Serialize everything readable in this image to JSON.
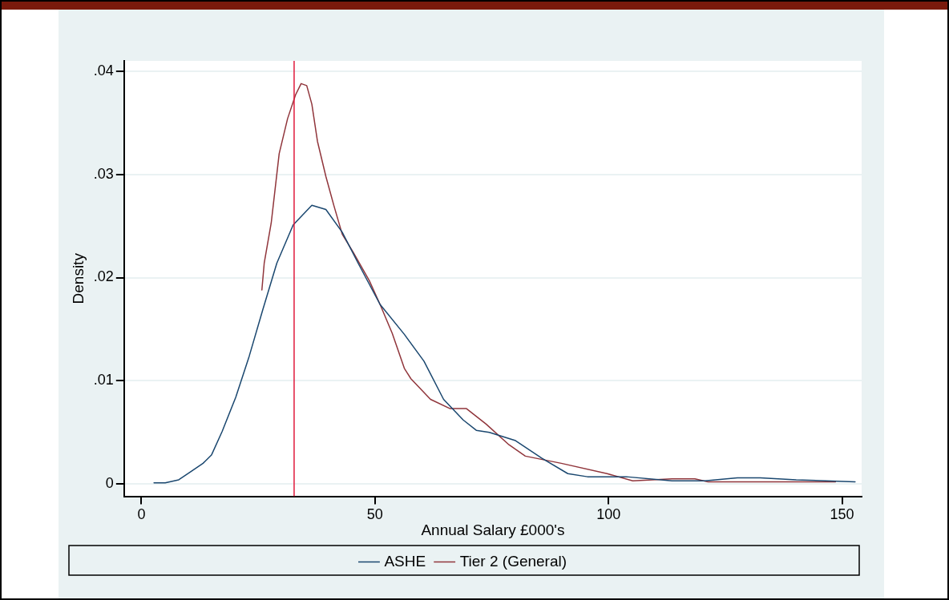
{
  "chart_data": {
    "type": "line",
    "xlabel": "Annual Salary £000's",
    "ylabel": "Density",
    "xlim": [
      -3.7,
      154.2
    ],
    "ylim": [
      -0.0012,
      0.041
    ],
    "xticks": [
      0,
      50,
      100,
      150
    ],
    "yticks": [
      {
        "value": 0,
        "label": "0"
      },
      {
        "value": 0.01,
        "label": ".01"
      },
      {
        "value": 0.02,
        "label": ".02"
      },
      {
        "value": 0.03,
        "label": ".03"
      },
      {
        "value": 0.04,
        "label": ".04"
      }
    ],
    "grid": "y",
    "legend": "bottom",
    "marker": "none",
    "line_style": "solid",
    "ref_lines": [
      {
        "axis": "x",
        "value": 32.7,
        "color": "#e0193c"
      }
    ],
    "series": [
      {
        "name": "ASHE",
        "color": "#1a476f",
        "x": [
          2.7,
          5.1,
          8.0,
          10.3,
          13.2,
          15.0,
          17.3,
          20.2,
          23.1,
          26.0,
          29.0,
          32.5,
          36.5,
          39.5,
          43.0,
          46.4,
          51.1,
          56.3,
          60.5,
          64.7,
          68.9,
          71.7,
          74.5,
          80.1,
          85.7,
          91.3,
          95.5,
          103.8,
          113.6,
          120.6,
          127.6,
          132.5,
          140.2,
          152.8
        ],
        "values": [
          0.0001,
          0.0001,
          0.0004,
          0.0011,
          0.002,
          0.0028,
          0.0051,
          0.0084,
          0.0124,
          0.0169,
          0.0214,
          0.0251,
          0.027,
          0.0266,
          0.0244,
          0.0214,
          0.0174,
          0.0145,
          0.0119,
          0.0082,
          0.0062,
          0.0052,
          0.005,
          0.0042,
          0.0025,
          0.001,
          0.0007,
          0.0007,
          0.0003,
          0.0003,
          0.0006,
          0.0006,
          0.0004,
          0.0002
        ]
      },
      {
        "name": "Tier 2 (General)",
        "color": "#90353b",
        "x": [
          25.8,
          26.3,
          27.8,
          29.5,
          31.3,
          33.0,
          34.2,
          35.4,
          36.5,
          37.7,
          39.5,
          41.2,
          43.0,
          45.3,
          48.8,
          51.1,
          53.7,
          56.3,
          57.7,
          61.9,
          66.1,
          69.6,
          73.8,
          78.7,
          82.2,
          89.9,
          99.7,
          105.2,
          113.6,
          118.5,
          121.3,
          134.6,
          148.6
        ],
        "values": [
          0.0188,
          0.0214,
          0.0253,
          0.032,
          0.0354,
          0.0377,
          0.0388,
          0.0386,
          0.0368,
          0.0332,
          0.0298,
          0.027,
          0.0242,
          0.0225,
          0.0197,
          0.0174,
          0.0146,
          0.0112,
          0.0102,
          0.0082,
          0.0073,
          0.0073,
          0.0058,
          0.0038,
          0.0027,
          0.002,
          0.001,
          0.0003,
          0.0005,
          0.0005,
          0.0002,
          0.0002,
          0.0002
        ]
      }
    ]
  }
}
